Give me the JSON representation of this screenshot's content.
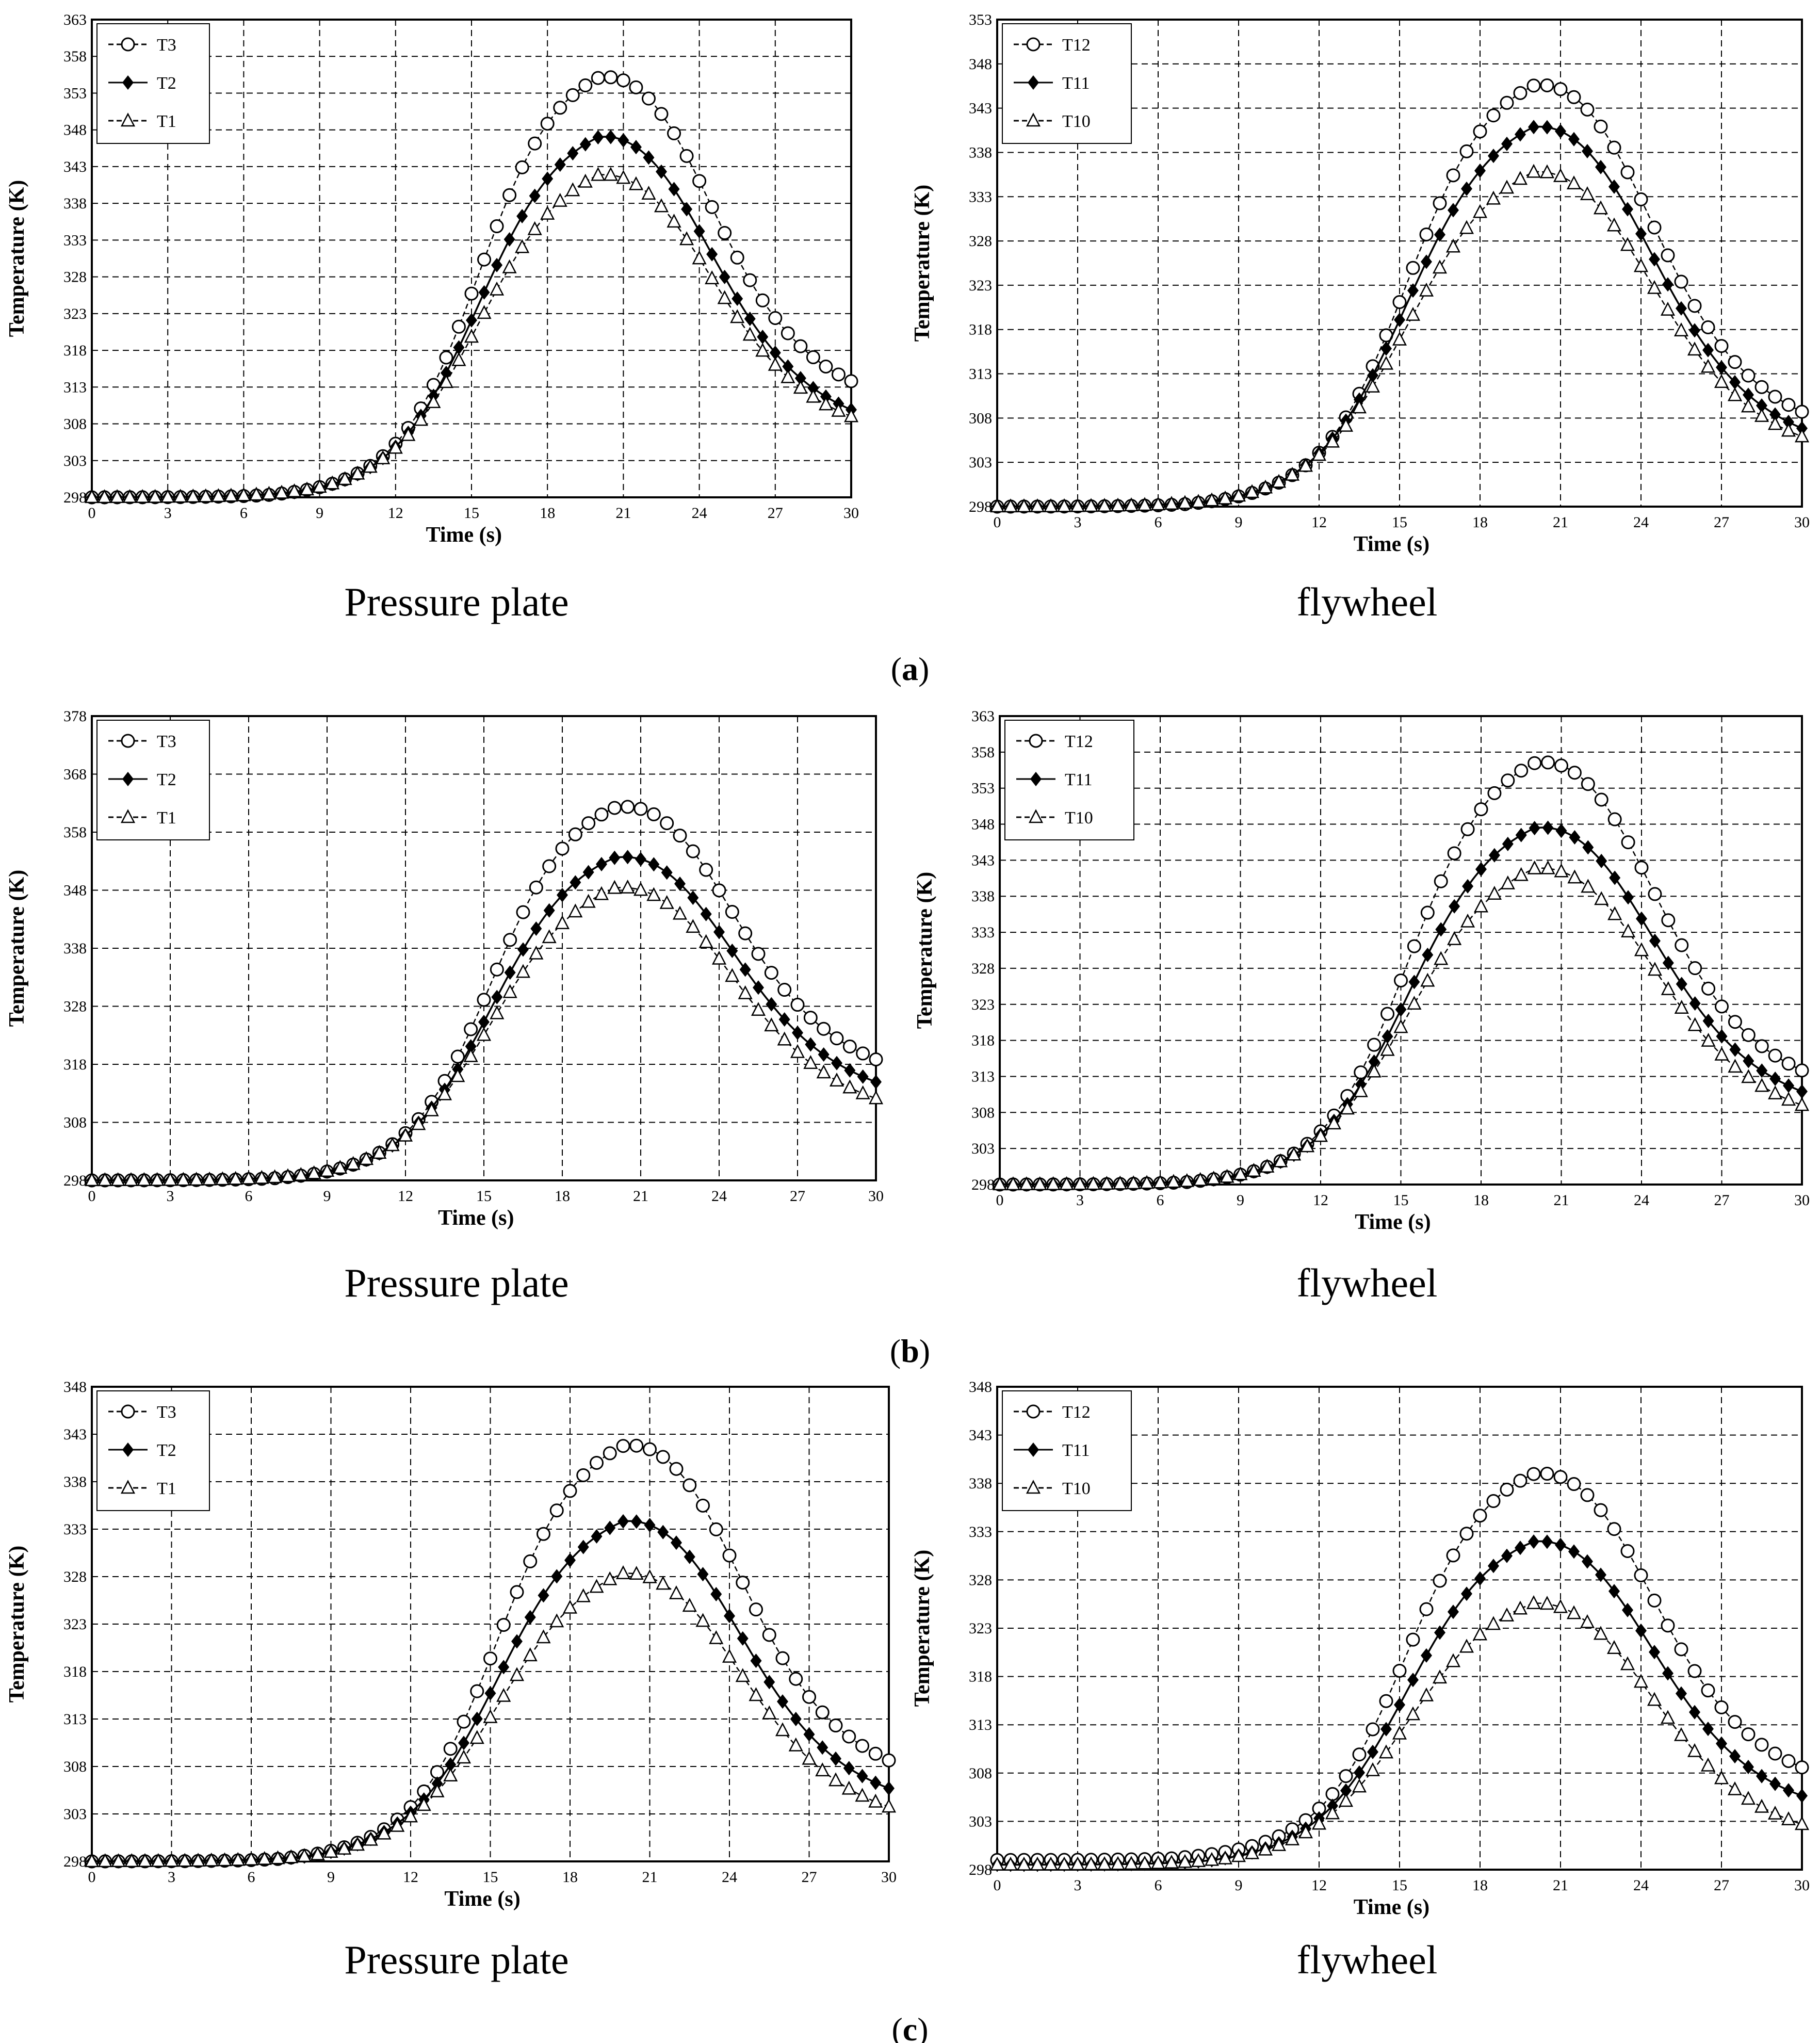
{
  "figure": {
    "panel_labels": [
      "a",
      "b",
      "c"
    ],
    "chart_data": [
      {
        "type": "line",
        "panel": "a",
        "caption": "Pressure plate",
        "xlabel": "Time (s)",
        "ylabel": "Temperature (K)",
        "xlim": [
          0,
          30
        ],
        "ylim": [
          298,
          363
        ],
        "xticks": [
          0,
          3,
          6,
          9,
          12,
          15,
          18,
          21,
          24,
          27,
          30
        ],
        "yticks": [
          298,
          303,
          308,
          313,
          318,
          323,
          328,
          333,
          338,
          343,
          348,
          353,
          358,
          363
        ],
        "grid": true,
        "legend": "top-left",
        "series": [
          {
            "name": "T3",
            "style": "dash-open-circle",
            "t0": 298,
            "tmax": 358,
            "tend": 313,
            "a": 7,
            "b": 0.12,
            "k": 4.5,
            "s": 3.4,
            "w": 1.6
          },
          {
            "name": "T2",
            "style": "solid-diamond",
            "t0": 298,
            "tmax": 350,
            "tend": 309,
            "a": 8,
            "b": 0.1,
            "k": 4.2,
            "s": 3.3,
            "w": 1.7
          },
          {
            "name": "T1",
            "style": "dash-open-triangle",
            "t0": 298,
            "tmax": 345,
            "tend": 308,
            "a": 8.5,
            "b": 0.08,
            "k": 4.0,
            "s": 3.3,
            "w": 1.8
          }
        ]
      },
      {
        "type": "line",
        "panel": "a",
        "caption": "flywheel",
        "xlabel": "Time (s)",
        "ylabel": "Temperature (K)",
        "xlim": [
          0,
          30
        ],
        "ylim": [
          298,
          353
        ],
        "xticks": [
          0,
          3,
          6,
          9,
          12,
          15,
          18,
          21,
          24,
          27,
          30
        ],
        "yticks": [
          298,
          303,
          308,
          313,
          318,
          323,
          328,
          333,
          338,
          343,
          348,
          353
        ],
        "grid": true,
        "legend": "top-left",
        "series": [
          {
            "name": "T12",
            "style": "dash-open-circle",
            "t0": 298,
            "tmax": 348,
            "tend": 308,
            "a": 7,
            "b": 0.1,
            "k": 4.3,
            "s": 3.1,
            "w": 1.6
          },
          {
            "name": "T11",
            "style": "solid-diamond",
            "t0": 298,
            "tmax": 343.5,
            "tend": 306,
            "a": 8,
            "b": 0.09,
            "k": 4.0,
            "s": 3.0,
            "w": 1.7
          },
          {
            "name": "T10",
            "style": "dash-open-triangle",
            "t0": 298,
            "tmax": 338.5,
            "tend": 305,
            "a": 8.5,
            "b": 0.08,
            "k": 3.8,
            "s": 3.0,
            "w": 1.8
          }
        ]
      },
      {
        "type": "line",
        "panel": "b",
        "caption": "Pressure plate",
        "xlabel": "Time (s)",
        "ylabel": "Temperature (K)",
        "xlim": [
          0,
          30
        ],
        "ylim": [
          298,
          378
        ],
        "xticks": [
          0,
          3,
          6,
          9,
          12,
          15,
          18,
          21,
          24,
          27,
          30
        ],
        "yticks": [
          298,
          308,
          318,
          328,
          338,
          348,
          358,
          368,
          378
        ],
        "grid": true,
        "legend": "top-left",
        "series": [
          {
            "name": "T3",
            "style": "dash-open-circle",
            "t0": 298,
            "tmax": 365.5,
            "tend": 318,
            "a": 7,
            "b": 0.12,
            "k": 4.8,
            "s": 3.4,
            "w": 1.6
          },
          {
            "name": "T2",
            "style": "solid-diamond",
            "t0": 298,
            "tmax": 357,
            "tend": 314,
            "a": 8,
            "b": 0.1,
            "k": 4.5,
            "s": 3.3,
            "w": 1.7
          },
          {
            "name": "T1",
            "style": "dash-open-triangle",
            "t0": 298,
            "tmax": 352,
            "tend": 311,
            "a": 8.5,
            "b": 0.08,
            "k": 4.2,
            "s": 3.3,
            "w": 1.8
          }
        ]
      },
      {
        "type": "line",
        "panel": "b",
        "caption": "flywheel",
        "xlabel": "Time (s)",
        "ylabel": "Temperature (K)",
        "xlim": [
          0,
          30
        ],
        "ylim": [
          298,
          363
        ],
        "xticks": [
          0,
          3,
          6,
          9,
          12,
          15,
          18,
          21,
          24,
          27,
          30
        ],
        "yticks": [
          298,
          303,
          308,
          313,
          318,
          323,
          328,
          333,
          338,
          343,
          348,
          353,
          358,
          363
        ],
        "grid": true,
        "legend": "top-left",
        "series": [
          {
            "name": "T12",
            "style": "dash-open-circle",
            "t0": 298,
            "tmax": 359.5,
            "tend": 313,
            "a": 7,
            "b": 0.1,
            "k": 4.5,
            "s": 3.2,
            "w": 1.6
          },
          {
            "name": "T11",
            "style": "solid-diamond",
            "t0": 298,
            "tmax": 350.5,
            "tend": 310,
            "a": 8,
            "b": 0.09,
            "k": 4.2,
            "s": 3.1,
            "w": 1.7
          },
          {
            "name": "T10",
            "style": "dash-open-triangle",
            "t0": 298,
            "tmax": 345,
            "tend": 308,
            "a": 8.5,
            "b": 0.08,
            "k": 4.0,
            "s": 3.1,
            "w": 1.8
          }
        ]
      },
      {
        "type": "line",
        "panel": "c",
        "caption": "Pressure plate",
        "xlabel": "Time (s)",
        "ylabel": "Temperature (K)",
        "xlim": [
          0,
          30
        ],
        "ylim": [
          298,
          348
        ],
        "xticks": [
          0,
          3,
          6,
          9,
          12,
          15,
          18,
          21,
          24,
          27,
          30
        ],
        "yticks": [
          298,
          303,
          308,
          313,
          318,
          323,
          328,
          333,
          338,
          343,
          348
        ],
        "grid": true,
        "legend": "top-left",
        "series": [
          {
            "name": "T3",
            "style": "dash-open-circle",
            "t0": 298,
            "tmax": 344,
            "tend": 308,
            "a": 7,
            "b": 0.12,
            "k": 4.3,
            "s": 3.3,
            "w": 1.6
          },
          {
            "name": "T2",
            "style": "solid-diamond",
            "t0": 298,
            "tmax": 336,
            "tend": 305,
            "a": 8,
            "b": 0.1,
            "k": 4.0,
            "s": 3.2,
            "w": 1.7
          },
          {
            "name": "T1",
            "style": "dash-open-triangle",
            "t0": 298,
            "tmax": 330.5,
            "tend": 303,
            "a": 8.5,
            "b": 0.08,
            "k": 3.8,
            "s": 3.2,
            "w": 1.8
          }
        ]
      },
      {
        "type": "line",
        "panel": "c",
        "caption": "flywheel",
        "xlabel": "Time (s)",
        "ylabel": "Temperature (K)",
        "xlim": [
          0,
          30
        ],
        "ylim": [
          298,
          348
        ],
        "xticks": [
          0,
          3,
          6,
          9,
          12,
          15,
          18,
          21,
          24,
          27,
          30
        ],
        "yticks": [
          298,
          303,
          308,
          313,
          318,
          323,
          328,
          333,
          338,
          343,
          348
        ],
        "grid": true,
        "legend": "top-left",
        "series": [
          {
            "name": "T12",
            "style": "dash-open-circle",
            "t0": 299,
            "tmax": 341,
            "tend": 308,
            "a": 6.5,
            "b": 0.12,
            "k": 4.4,
            "s": 3.5,
            "w": 1.6
          },
          {
            "name": "T11",
            "style": "solid-diamond",
            "t0": 298.5,
            "tmax": 334,
            "tend": 305,
            "a": 8,
            "b": 0.1,
            "k": 4.1,
            "s": 3.3,
            "w": 1.7
          },
          {
            "name": "T10",
            "style": "dash-open-triangle",
            "t0": 298.5,
            "tmax": 327.5,
            "tend": 302,
            "a": 8.5,
            "b": 0.08,
            "k": 3.9,
            "s": 3.3,
            "w": 1.8
          }
        ]
      }
    ]
  }
}
